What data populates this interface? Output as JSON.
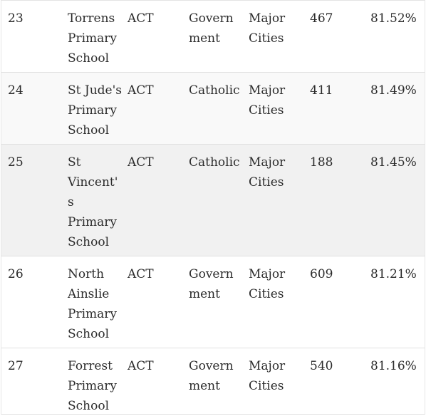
{
  "table": {
    "rows": [
      {
        "rank": "23",
        "school": [
          "Torrens",
          "Primary",
          "School"
        ],
        "state": "ACT",
        "sector": [
          "Govern",
          "ment"
        ],
        "location": [
          "Major",
          "Cities"
        ],
        "count": "467",
        "percent": "81.52%",
        "bg": "#ffffff"
      },
      {
        "rank": "24",
        "school": [
          "St Jude's",
          "Primary",
          "School"
        ],
        "state": "ACT",
        "sector": [
          "Catholic"
        ],
        "location": [
          "Major",
          "Cities"
        ],
        "count": "411",
        "percent": "81.49%",
        "bg": "#f9f9f9"
      },
      {
        "rank": "25",
        "school": [
          "St",
          "Vincent'",
          "s",
          "Primary",
          "School"
        ],
        "state": "ACT",
        "sector": [
          "Catholic"
        ],
        "location": [
          "Major",
          "Cities"
        ],
        "count": "188",
        "percent": "81.45%",
        "bg": "#f1f1f1"
      },
      {
        "rank": "26",
        "school": [
          "North",
          "Ainslie",
          "Primary",
          "School"
        ],
        "state": "ACT",
        "sector": [
          "Govern",
          "ment"
        ],
        "location": [
          "Major",
          "Cities"
        ],
        "count": "609",
        "percent": "81.21%",
        "bg": "#ffffff"
      },
      {
        "rank": "27",
        "school": [
          "Forrest",
          "Primary",
          "School"
        ],
        "state": "ACT",
        "sector": [
          "Govern",
          "ment"
        ],
        "location": [
          "Major",
          "Cities"
        ],
        "count": "540",
        "percent": "81.16%",
        "bg": "#ffffff"
      }
    ]
  }
}
